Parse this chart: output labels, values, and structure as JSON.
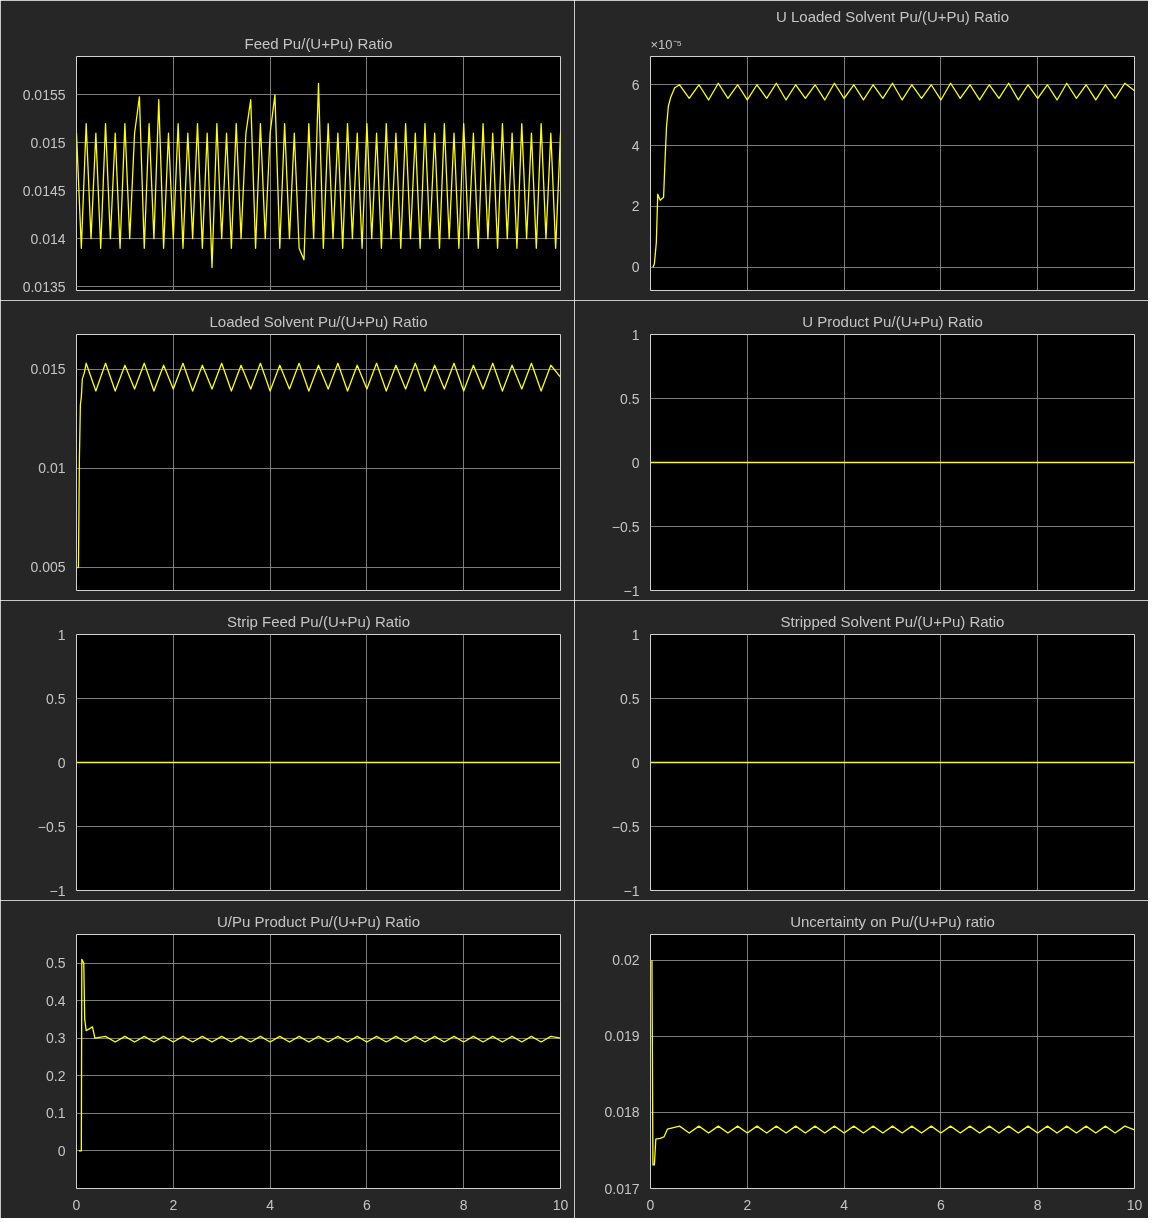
{
  "chart_data": [
    {
      "type": "line",
      "title": "Feed Pu/(U+Pu) Ratio",
      "xlim": [
        0,
        10
      ],
      "xticks": [
        0,
        2,
        4,
        6,
        8,
        10
      ],
      "ylim": [
        0.01346,
        0.0159
      ],
      "yticks": [
        0.0135,
        0.014,
        0.0145,
        0.015,
        0.0155
      ],
      "grid": true,
      "tick_labels": "y",
      "marker": "none",
      "series": [
        {
          "color": "#ffff00",
          "x": [
            0,
            0.1,
            0.2,
            0.3,
            0.4,
            0.5,
            0.6,
            0.7,
            0.8,
            0.9,
            1.0,
            1.1,
            1.2,
            1.3,
            1.4,
            1.5,
            1.6,
            1.7,
            1.8,
            1.9,
            2.0,
            2.1,
            2.2,
            2.3,
            2.4,
            2.5,
            2.6,
            2.7,
            2.8,
            2.9,
            3.0,
            3.1,
            3.2,
            3.3,
            3.4,
            3.5,
            3.6,
            3.7,
            3.8,
            3.9,
            4.0,
            4.1,
            4.2,
            4.3,
            4.4,
            4.5,
            4.6,
            4.7,
            4.8,
            4.9,
            5.0,
            5.1,
            5.2,
            5.3,
            5.4,
            5.5,
            5.6,
            5.7,
            5.8,
            5.9,
            6.0,
            6.1,
            6.2,
            6.3,
            6.4,
            6.5,
            6.6,
            6.7,
            6.8,
            6.9,
            7.0,
            7.1,
            7.2,
            7.3,
            7.4,
            7.5,
            7.6,
            7.7,
            7.8,
            7.9,
            8.0,
            8.1,
            8.2,
            8.3,
            8.4,
            8.5,
            8.6,
            8.7,
            8.8,
            8.9,
            9.0,
            9.1,
            9.2,
            9.3,
            9.4,
            9.5,
            9.6,
            9.7,
            9.8,
            9.9,
            10.0
          ],
          "values": [
            0.0151,
            0.0139,
            0.0152,
            0.014,
            0.0151,
            0.0139,
            0.0152,
            0.014,
            0.0151,
            0.0139,
            0.0152,
            0.014,
            0.0151,
            0.01548,
            0.0139,
            0.0152,
            0.014,
            0.01545,
            0.0139,
            0.0151,
            0.014,
            0.0152,
            0.0139,
            0.0151,
            0.014,
            0.0152,
            0.0139,
            0.0151,
            0.0137,
            0.0152,
            0.014,
            0.0151,
            0.0139,
            0.0152,
            0.014,
            0.0151,
            0.01545,
            0.0139,
            0.0152,
            0.014,
            0.0151,
            0.0155,
            0.0139,
            0.0152,
            0.014,
            0.0151,
            0.0139,
            0.01378,
            0.0152,
            0.014,
            0.01562,
            0.0139,
            0.0152,
            0.014,
            0.0151,
            0.0139,
            0.0152,
            0.014,
            0.0151,
            0.0139,
            0.0152,
            0.014,
            0.0151,
            0.0139,
            0.0152,
            0.014,
            0.0151,
            0.0139,
            0.0152,
            0.014,
            0.0151,
            0.0139,
            0.0152,
            0.014,
            0.0151,
            0.0139,
            0.0152,
            0.014,
            0.0151,
            0.0139,
            0.0152,
            0.014,
            0.0151,
            0.0139,
            0.0152,
            0.014,
            0.0151,
            0.0139,
            0.0152,
            0.014,
            0.0151,
            0.0139,
            0.0152,
            0.014,
            0.0151,
            0.0139,
            0.0152,
            0.014,
            0.0151,
            0.0139,
            0.0151
          ]
        }
      ]
    },
    {
      "type": "line",
      "title": "U Loaded Solvent Pu/(U+Pu) Ratio",
      "annotations": [
        "×10⁻⁵"
      ],
      "xlim": [
        0,
        10
      ],
      "xticks": [
        0,
        2,
        4,
        6,
        8,
        10
      ],
      "ylim": [
        -0.77,
        6.93
      ],
      "yticks": [
        0,
        2,
        4,
        6
      ],
      "grid": true,
      "tick_labels": "y",
      "marker": "none",
      "series": [
        {
          "color": "#ffff00",
          "x": [
            0.05,
            0.08,
            0.12,
            0.15,
            0.2,
            0.27,
            0.3,
            0.33,
            0.37,
            0.42,
            0.5,
            0.6,
            0.8,
            1.0,
            1.2,
            1.4,
            1.6,
            1.8,
            2.0,
            2.2,
            2.4,
            2.6,
            2.8,
            3.0,
            3.2,
            3.4,
            3.6,
            3.8,
            4.0,
            4.2,
            4.4,
            4.6,
            4.8,
            5.0,
            5.2,
            5.4,
            5.6,
            5.8,
            6.0,
            6.2,
            6.4,
            6.6,
            6.8,
            7.0,
            7.2,
            7.4,
            7.6,
            7.8,
            8.0,
            8.2,
            8.4,
            8.6,
            8.8,
            9.0,
            9.2,
            9.4,
            9.6,
            9.8,
            10.0
          ],
          "values": [
            0,
            0.1,
            0.8,
            2.4,
            2.2,
            2.3,
            3.5,
            4.6,
            5.3,
            5.6,
            5.9,
            6,
            5.55,
            6,
            5.5,
            6.05,
            5.55,
            6,
            5.5,
            6,
            5.55,
            6.05,
            5.5,
            6,
            5.55,
            6,
            5.5,
            6.05,
            5.55,
            6,
            5.5,
            6,
            5.55,
            6.05,
            5.5,
            6,
            5.55,
            6,
            5.5,
            6.05,
            5.55,
            6,
            5.5,
            6,
            5.55,
            6.05,
            5.5,
            6,
            5.55,
            6,
            5.5,
            6.05,
            5.55,
            6,
            5.5,
            6,
            5.55,
            6.05,
            5.8
          ]
        }
      ]
    },
    {
      "type": "line",
      "title": "Loaded Solvent Pu/(U+Pu) Ratio",
      "xlim": [
        0,
        10
      ],
      "xticks": [
        0,
        2,
        4,
        6,
        8,
        10
      ],
      "ylim": [
        0.00384,
        0.01675
      ],
      "yticks": [
        0.005,
        0.01,
        0.015
      ],
      "grid": true,
      "tick_labels": "y",
      "marker": "none",
      "series": [
        {
          "color": "#ffff00",
          "x": [
            0.02,
            0.04,
            0.06,
            0.08,
            0.1,
            0.12,
            0.16,
            0.2,
            0.4,
            0.6,
            0.8,
            1.0,
            1.2,
            1.4,
            1.6,
            1.8,
            2.0,
            2.2,
            2.4,
            2.6,
            2.8,
            3.0,
            3.2,
            3.4,
            3.6,
            3.8,
            4.0,
            4.2,
            4.4,
            4.6,
            4.8,
            5.0,
            5.2,
            5.4,
            5.6,
            5.8,
            6.0,
            6.2,
            6.4,
            6.6,
            6.8,
            7.0,
            7.2,
            7.4,
            7.6,
            7.8,
            8.0,
            8.2,
            8.4,
            8.6,
            8.8,
            9.0,
            9.2,
            9.4,
            9.6,
            9.8,
            10.0
          ],
          "values": [
            0.005,
            0.005,
            0.0105,
            0.0132,
            0.0136,
            0.0145,
            0.0148,
            0.0153,
            0.0139,
            0.0153,
            0.0139,
            0.0152,
            0.014,
            0.0153,
            0.0139,
            0.0152,
            0.014,
            0.0153,
            0.0139,
            0.0152,
            0.014,
            0.0153,
            0.0139,
            0.0152,
            0.014,
            0.0153,
            0.0139,
            0.0152,
            0.014,
            0.0153,
            0.0139,
            0.0152,
            0.014,
            0.0153,
            0.0139,
            0.0152,
            0.014,
            0.0153,
            0.0139,
            0.0152,
            0.014,
            0.0153,
            0.0139,
            0.0152,
            0.014,
            0.0153,
            0.0139,
            0.0152,
            0.014,
            0.0153,
            0.0139,
            0.0152,
            0.014,
            0.0153,
            0.0139,
            0.0152,
            0.0146
          ]
        }
      ]
    },
    {
      "type": "line",
      "title": "U Product Pu/(U+Pu) Ratio",
      "xlim": [
        0,
        10
      ],
      "xticks": [
        0,
        2,
        4,
        6,
        8,
        10
      ],
      "ylim": [
        -1,
        1
      ],
      "yticks": [
        -1,
        -0.5,
        0,
        0.5,
        1
      ],
      "grid": true,
      "tick_labels": "y",
      "marker": "none",
      "series": [
        {
          "color": "#ffff00",
          "x": [
            0,
            10
          ],
          "values": [
            0,
            0
          ]
        }
      ]
    },
    {
      "type": "line",
      "title": "Strip Feed Pu/(U+Pu) Ratio",
      "xlim": [
        0,
        10
      ],
      "xticks": [
        0,
        2,
        4,
        6,
        8,
        10
      ],
      "ylim": [
        -1,
        1
      ],
      "yticks": [
        -1,
        -0.5,
        0,
        0.5,
        1
      ],
      "grid": true,
      "tick_labels": "y",
      "marker": "none",
      "series": [
        {
          "color": "#ffff00",
          "x": [
            0,
            10
          ],
          "values": [
            0,
            0
          ]
        }
      ]
    },
    {
      "type": "line",
      "title": "Stripped Solvent Pu/(U+Pu) Ratio",
      "xlim": [
        0,
        10
      ],
      "xticks": [
        0,
        2,
        4,
        6,
        8,
        10
      ],
      "ylim": [
        -1,
        1
      ],
      "yticks": [
        -1,
        -0.5,
        0,
        0.5,
        1
      ],
      "grid": true,
      "tick_labels": "y",
      "marker": "none",
      "series": [
        {
          "color": "#ffff00",
          "x": [
            0,
            10
          ],
          "values": [
            0,
            0
          ]
        }
      ]
    },
    {
      "type": "line",
      "title": "U/Pu Product Pu/(U+Pu) Ratio",
      "xlim": [
        0,
        10
      ],
      "xticks": [
        0,
        2,
        4,
        6,
        8,
        10
      ],
      "ylim": [
        -0.1,
        0.576
      ],
      "yticks": [
        0,
        0.1,
        0.2,
        0.3,
        0.4,
        0.5
      ],
      "grid": true,
      "marker": "none",
      "series": [
        {
          "color": "#ffff00",
          "x": [
            0.05,
            0.1,
            0.11,
            0.15,
            0.17,
            0.2,
            0.33,
            0.38,
            0.6,
            0.8,
            1.0,
            1.2,
            1.4,
            1.6,
            1.8,
            2.0,
            2.2,
            2.4,
            2.6,
            2.8,
            3.0,
            3.2,
            3.4,
            3.6,
            3.8,
            4.0,
            4.2,
            4.4,
            4.6,
            4.8,
            5.0,
            5.2,
            5.4,
            5.6,
            5.8,
            6.0,
            6.2,
            6.4,
            6.6,
            6.8,
            7.0,
            7.2,
            7.4,
            7.6,
            7.8,
            8.0,
            8.2,
            8.4,
            8.6,
            8.8,
            9.0,
            9.2,
            9.4,
            9.6,
            9.8,
            10.0
          ],
          "values": [
            0,
            0,
            0.51,
            0.5,
            0.35,
            0.32,
            0.33,
            0.3,
            0.305,
            0.29,
            0.305,
            0.29,
            0.305,
            0.29,
            0.305,
            0.29,
            0.305,
            0.29,
            0.305,
            0.29,
            0.305,
            0.29,
            0.305,
            0.29,
            0.305,
            0.29,
            0.305,
            0.29,
            0.305,
            0.29,
            0.305,
            0.29,
            0.305,
            0.29,
            0.305,
            0.29,
            0.305,
            0.29,
            0.305,
            0.29,
            0.305,
            0.29,
            0.305,
            0.29,
            0.305,
            0.29,
            0.305,
            0.29,
            0.305,
            0.29,
            0.305,
            0.29,
            0.305,
            0.29,
            0.305,
            0.3
          ]
        }
      ]
    },
    {
      "type": "line",
      "title": "Uncertainty on Pu/(U+Pu) ratio",
      "xlim": [
        0,
        10
      ],
      "xticks": [
        0,
        2,
        4,
        6,
        8,
        10
      ],
      "ylim": [
        0.017,
        0.02034
      ],
      "yticks": [
        0.017,
        0.018,
        0.019,
        0.02
      ],
      "grid": true,
      "marker": "none",
      "series": [
        {
          "color": "#ffff00",
          "x": [
            0.03,
            0.05,
            0.08,
            0.11,
            0.2,
            0.28,
            0.35,
            0.6,
            0.8,
            1.0,
            1.2,
            1.4,
            1.6,
            1.8,
            2.0,
            2.2,
            2.4,
            2.6,
            2.8,
            3.0,
            3.2,
            3.4,
            3.6,
            3.8,
            4.0,
            4.2,
            4.4,
            4.6,
            4.8,
            5.0,
            5.2,
            5.4,
            5.6,
            5.8,
            6.0,
            6.2,
            6.4,
            6.6,
            6.8,
            7.0,
            7.2,
            7.4,
            7.6,
            7.8,
            8.0,
            8.2,
            8.4,
            8.6,
            8.8,
            9.0,
            9.2,
            9.4,
            9.6,
            9.8,
            10.0
          ],
          "values": [
            0.02,
            0.01731,
            0.01731,
            0.01765,
            0.01766,
            0.01768,
            0.01778,
            0.01782,
            0.01773,
            0.01782,
            0.01773,
            0.01782,
            0.01773,
            0.01782,
            0.01773,
            0.01782,
            0.01773,
            0.01782,
            0.01773,
            0.01782,
            0.01773,
            0.01782,
            0.01773,
            0.01782,
            0.01773,
            0.01782,
            0.01773,
            0.01782,
            0.01773,
            0.01782,
            0.01773,
            0.01782,
            0.01773,
            0.01782,
            0.01773,
            0.01782,
            0.01773,
            0.01782,
            0.01773,
            0.01782,
            0.01773,
            0.01782,
            0.01773,
            0.01782,
            0.01773,
            0.01782,
            0.01773,
            0.01782,
            0.01773,
            0.01782,
            0.01773,
            0.01782,
            0.01773,
            0.01782,
            0.01777
          ]
        }
      ]
    }
  ]
}
